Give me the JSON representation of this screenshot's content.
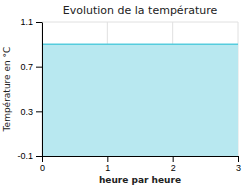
{
  "chart_data": {
    "type": "area",
    "title": "Evolution de la température",
    "x_label": "heure par heure",
    "y_label": "Température en °C",
    "x": [
      0,
      3
    ],
    "series": [
      {
        "type": "area",
        "color": "#b8e8f0",
        "values": [
          0.9,
          0.9
        ]
      },
      {
        "type": "line",
        "color": "#55ccdd",
        "values": [
          0.9,
          0.9
        ]
      }
    ],
    "xlim": [
      0,
      3
    ],
    "ylim": [
      -0.1,
      1.1
    ],
    "xticks": [
      0,
      1,
      2,
      3
    ],
    "yticks": [
      -0.1,
      0.3,
      0.7,
      1.1
    ],
    "grid": true
  }
}
